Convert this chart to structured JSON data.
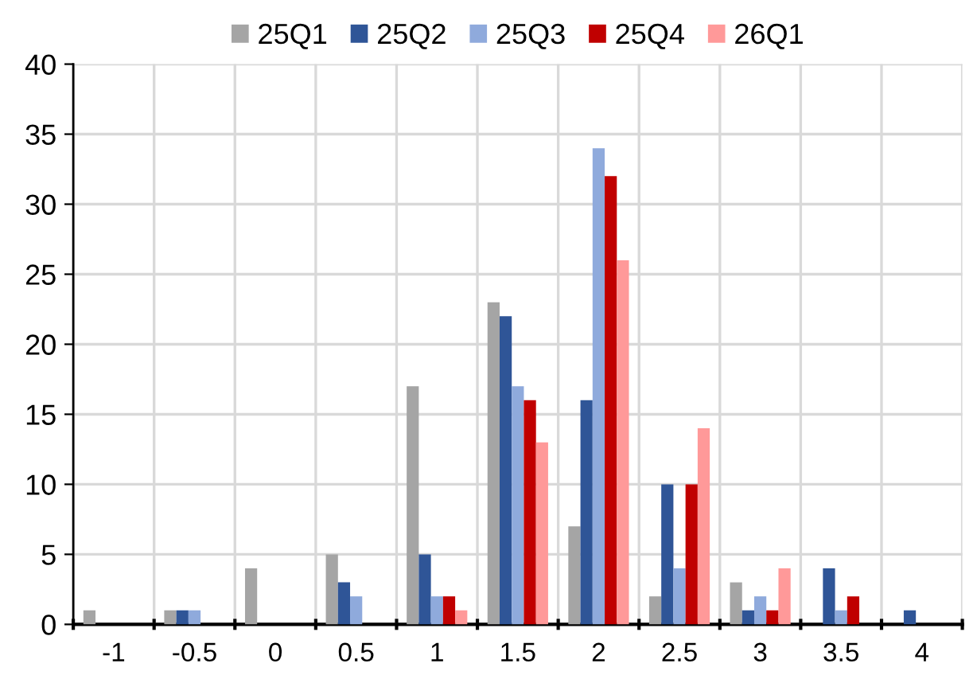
{
  "chart_data": {
    "type": "bar",
    "categories": [
      "-1",
      "-0.5",
      "0",
      "0.5",
      "1",
      "1.5",
      "2",
      "2.5",
      "3",
      "3.5",
      "4"
    ],
    "series": [
      {
        "name": "25Q1",
        "color": "#a5a5a5",
        "values": [
          1,
          1,
          4,
          5,
          17,
          23,
          7,
          2,
          3,
          0,
          0
        ]
      },
      {
        "name": "25Q2",
        "color": "#2f5597",
        "values": [
          0,
          1,
          0,
          3,
          5,
          22,
          16,
          10,
          1,
          4,
          1
        ]
      },
      {
        "name": "25Q3",
        "color": "#8faadc",
        "values": [
          0,
          1,
          0,
          2,
          2,
          17,
          34,
          4,
          2,
          1,
          0
        ]
      },
      {
        "name": "25Q4",
        "color": "#c00000",
        "values": [
          0,
          0,
          0,
          0,
          2,
          16,
          32,
          10,
          1,
          2,
          0
        ]
      },
      {
        "name": "26Q1",
        "color": "#ff9999",
        "values": [
          0,
          0,
          0,
          0,
          1,
          13,
          26,
          14,
          4,
          0,
          0
        ]
      }
    ],
    "ylim": [
      0,
      40
    ],
    "yticks": [
      0,
      5,
      10,
      15,
      20,
      25,
      30,
      35,
      40
    ],
    "grid": true,
    "legend": "top"
  }
}
